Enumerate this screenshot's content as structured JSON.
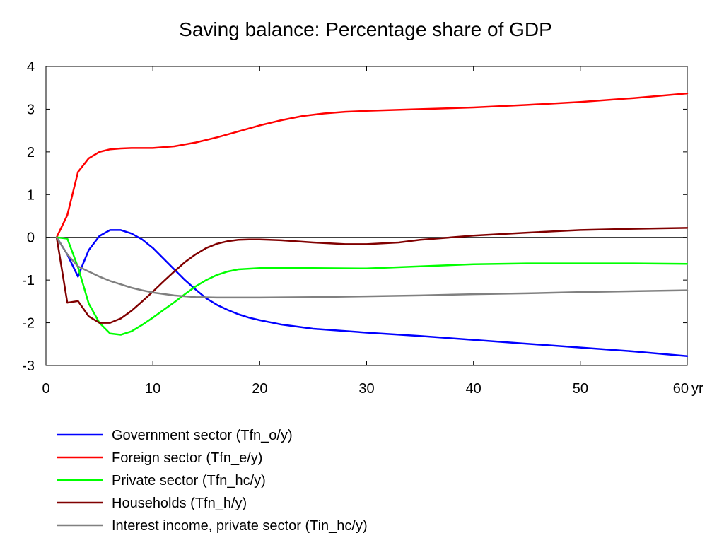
{
  "chart_data": {
    "type": "line",
    "title": "Saving balance: Percentage share of GDP",
    "xlabel": "",
    "ylabel": "",
    "x_unit_label": "yr",
    "xlim": [
      0,
      60
    ],
    "ylim": [
      -3,
      4
    ],
    "x_ticks": [
      0,
      10,
      20,
      30,
      40,
      50,
      60
    ],
    "y_ticks": [
      -3,
      -2,
      -1,
      0,
      1,
      2,
      3,
      4
    ],
    "grid": false,
    "zero_line": true,
    "legend_position": "bottom-left",
    "series": [
      {
        "name": "Government sector (Tfn_o/y)",
        "color": "#0000ff",
        "points": [
          [
            1,
            0
          ],
          [
            2,
            -0.4
          ],
          [
            3,
            -0.92
          ],
          [
            3.5,
            -0.6
          ],
          [
            4,
            -0.3
          ],
          [
            5,
            0.03
          ],
          [
            6,
            0.17
          ],
          [
            7,
            0.17
          ],
          [
            8,
            0.09
          ],
          [
            9,
            -0.05
          ],
          [
            10,
            -0.25
          ],
          [
            11,
            -0.5
          ],
          [
            12,
            -0.75
          ],
          [
            13,
            -1.0
          ],
          [
            14,
            -1.22
          ],
          [
            15,
            -1.43
          ],
          [
            16,
            -1.58
          ],
          [
            17,
            -1.7
          ],
          [
            18,
            -1.8
          ],
          [
            19,
            -1.88
          ],
          [
            20,
            -1.94
          ],
          [
            22,
            -2.04
          ],
          [
            25,
            -2.14
          ],
          [
            30,
            -2.23
          ],
          [
            35,
            -2.31
          ],
          [
            40,
            -2.4
          ],
          [
            45,
            -2.49
          ],
          [
            50,
            -2.58
          ],
          [
            55,
            -2.67
          ],
          [
            60,
            -2.78
          ]
        ]
      },
      {
        "name": "Foreign sector (Tfn_e/y)",
        "color": "#ff0000",
        "points": [
          [
            1,
            0
          ],
          [
            2,
            0.52
          ],
          [
            3,
            1.53
          ],
          [
            4,
            1.85
          ],
          [
            5,
            2.0
          ],
          [
            6,
            2.06
          ],
          [
            7,
            2.08
          ],
          [
            8,
            2.09
          ],
          [
            10,
            2.09
          ],
          [
            12,
            2.13
          ],
          [
            14,
            2.22
          ],
          [
            16,
            2.34
          ],
          [
            18,
            2.48
          ],
          [
            20,
            2.62
          ],
          [
            22,
            2.74
          ],
          [
            24,
            2.84
          ],
          [
            26,
            2.9
          ],
          [
            28,
            2.94
          ],
          [
            30,
            2.96
          ],
          [
            35,
            3.0
          ],
          [
            40,
            3.04
          ],
          [
            45,
            3.1
          ],
          [
            50,
            3.17
          ],
          [
            55,
            3.26
          ],
          [
            60,
            3.37
          ]
        ]
      },
      {
        "name": "Private sector (Tfn_hc/y)",
        "color": "#00ff00",
        "points": [
          [
            1,
            0
          ],
          [
            2,
            -0.03
          ],
          [
            3,
            -0.7
          ],
          [
            4,
            -1.55
          ],
          [
            5,
            -2.0
          ],
          [
            6,
            -2.25
          ],
          [
            7,
            -2.28
          ],
          [
            8,
            -2.2
          ],
          [
            9,
            -2.05
          ],
          [
            10,
            -1.88
          ],
          [
            11,
            -1.7
          ],
          [
            12,
            -1.52
          ],
          [
            13,
            -1.33
          ],
          [
            14,
            -1.15
          ],
          [
            15,
            -1.0
          ],
          [
            16,
            -0.88
          ],
          [
            17,
            -0.8
          ],
          [
            18,
            -0.75
          ],
          [
            20,
            -0.72
          ],
          [
            25,
            -0.72
          ],
          [
            30,
            -0.73
          ],
          [
            35,
            -0.68
          ],
          [
            40,
            -0.63
          ],
          [
            45,
            -0.61
          ],
          [
            50,
            -0.61
          ],
          [
            55,
            -0.61
          ],
          [
            60,
            -0.62
          ]
        ]
      },
      {
        "name": "Households (Tfn_h/y)",
        "color": "#800000",
        "points": [
          [
            1,
            0
          ],
          [
            2,
            -1.53
          ],
          [
            3,
            -1.49
          ],
          [
            4,
            -1.85
          ],
          [
            5,
            -2.0
          ],
          [
            6,
            -2.0
          ],
          [
            7,
            -1.9
          ],
          [
            8,
            -1.72
          ],
          [
            9,
            -1.5
          ],
          [
            10,
            -1.27
          ],
          [
            11,
            -1.03
          ],
          [
            12,
            -0.8
          ],
          [
            13,
            -0.58
          ],
          [
            14,
            -0.4
          ],
          [
            15,
            -0.25
          ],
          [
            16,
            -0.15
          ],
          [
            17,
            -0.09
          ],
          [
            18,
            -0.06
          ],
          [
            19,
            -0.05
          ],
          [
            20,
            -0.05
          ],
          [
            22,
            -0.07
          ],
          [
            25,
            -0.12
          ],
          [
            28,
            -0.16
          ],
          [
            30,
            -0.16
          ],
          [
            33,
            -0.12
          ],
          [
            35,
            -0.06
          ],
          [
            40,
            0.04
          ],
          [
            45,
            0.11
          ],
          [
            50,
            0.17
          ],
          [
            55,
            0.2
          ],
          [
            60,
            0.22
          ]
        ]
      },
      {
        "name": "Interest income, private sector (Tin_hc/y)",
        "color": "#808080",
        "points": [
          [
            1,
            0
          ],
          [
            2,
            -0.4
          ],
          [
            3,
            -0.68
          ],
          [
            4,
            -0.8
          ],
          [
            5,
            -0.92
          ],
          [
            6,
            -1.02
          ],
          [
            7,
            -1.1
          ],
          [
            8,
            -1.18
          ],
          [
            9,
            -1.24
          ],
          [
            10,
            -1.29
          ],
          [
            12,
            -1.36
          ],
          [
            14,
            -1.4
          ],
          [
            16,
            -1.41
          ],
          [
            20,
            -1.41
          ],
          [
            25,
            -1.4
          ],
          [
            30,
            -1.38
          ],
          [
            35,
            -1.36
          ],
          [
            40,
            -1.33
          ],
          [
            45,
            -1.31
          ],
          [
            50,
            -1.28
          ],
          [
            55,
            -1.26
          ],
          [
            60,
            -1.24
          ]
        ]
      }
    ]
  }
}
